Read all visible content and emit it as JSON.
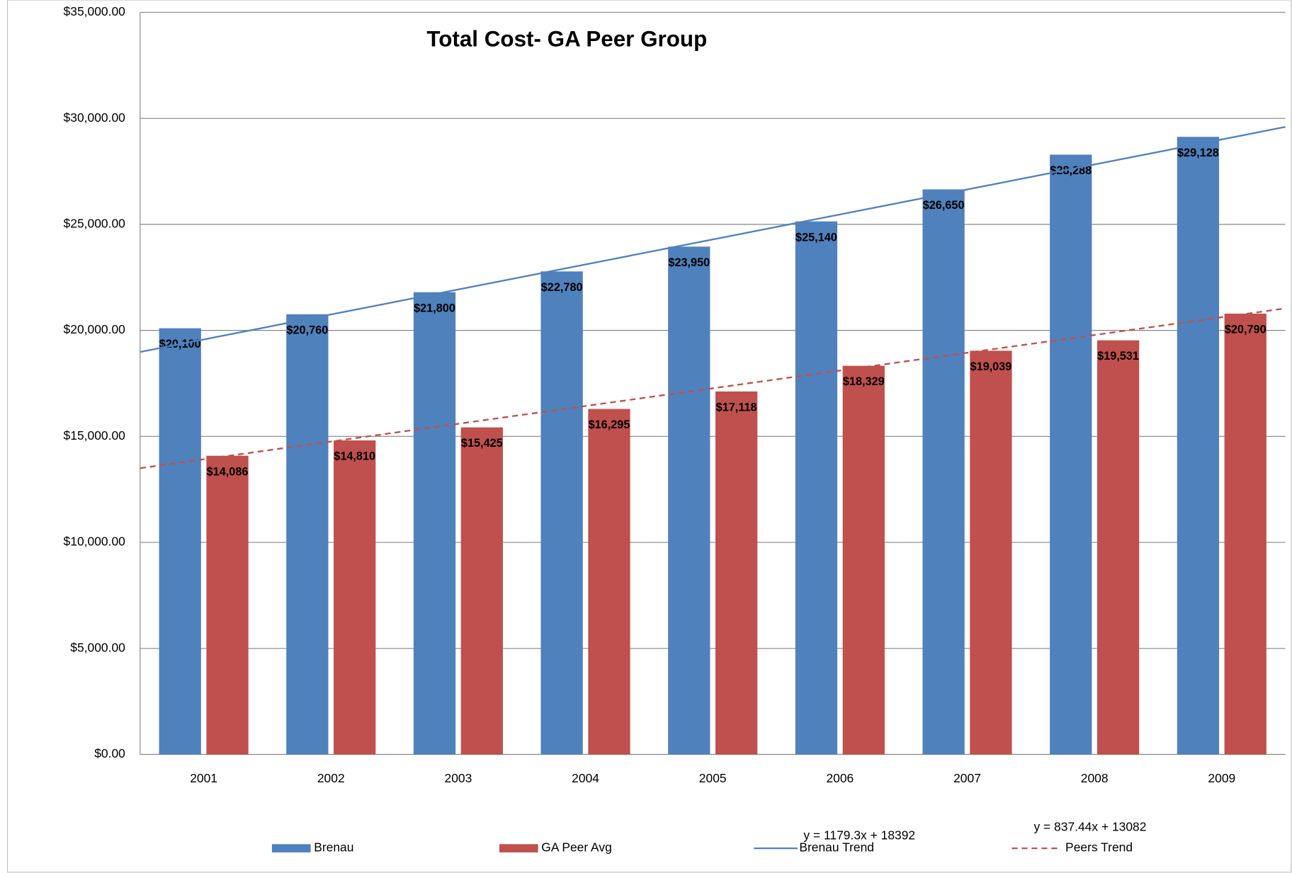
{
  "chart_data": {
    "type": "bar",
    "title": "Total Cost- GA Peer Group",
    "categories": [
      "2001",
      "2002",
      "2003",
      "2004",
      "2005",
      "2006",
      "2007",
      "2008",
      "2009"
    ],
    "series": [
      {
        "name": "Brenau",
        "color": "#4f81bd",
        "values": [
          20100,
          20760,
          21800,
          22780,
          23950,
          25140,
          26650,
          28288,
          29128
        ],
        "value_labels": [
          "$20,100",
          "$20,760",
          "$21,800",
          "$22,780",
          "$23,950",
          "$25,140",
          "$26,650",
          "$28,288",
          "$29,128"
        ]
      },
      {
        "name": "GA Peer Avg",
        "color": "#c0504d",
        "values": [
          14086,
          14810,
          15425,
          16295,
          17118,
          18329,
          19039,
          19531,
          20790
        ],
        "value_labels": [
          "$14,086",
          "$14,810",
          "$15,425",
          "$16,295",
          "$17,118",
          "$18,329",
          "$19,039",
          "$19,531",
          "$20,790"
        ]
      }
    ],
    "trendlines": [
      {
        "name": "Brenau Trend",
        "color": "#4f81bd",
        "dashed": false,
        "slope": 1179.3,
        "intercept": 18392,
        "equation": "y = 1179.3x + 18392"
      },
      {
        "name": "Peers Trend",
        "color": "#c0504d",
        "dashed": true,
        "slope": 837.44,
        "intercept": 13082,
        "equation": "y = 837.44x + 13082"
      }
    ],
    "ylim": [
      0,
      35000
    ],
    "yticks": [
      {
        "value": 0,
        "label": "$0.00"
      },
      {
        "value": 5000,
        "label": "$5,000.00"
      },
      {
        "value": 10000,
        "label": "$10,000.00"
      },
      {
        "value": 15000,
        "label": "$15,000.00"
      },
      {
        "value": 20000,
        "label": "$20,000.00"
      },
      {
        "value": 25000,
        "label": "$25,000.00"
      },
      {
        "value": 30000,
        "label": "$30,000.00"
      },
      {
        "value": 35000,
        "label": "$35,000.00"
      }
    ],
    "grid": true,
    "legend": "bottom"
  }
}
